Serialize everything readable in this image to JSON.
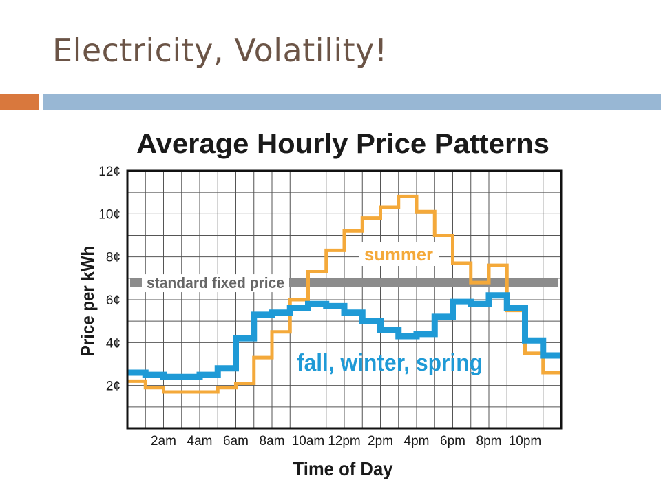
{
  "slide": {
    "title": "Electricity, Volatility!",
    "accent_colors": [
      "#d9783d",
      "#98b7d4"
    ]
  },
  "chart_data": {
    "type": "line",
    "title": "Average Hourly Price Patterns",
    "xlabel": "Time of Day",
    "ylabel": "Price per kWh",
    "x_tick_labels": [
      "2am",
      "4am",
      "6am",
      "8am",
      "10am",
      "12pm",
      "2pm",
      "4pm",
      "6pm",
      "8pm",
      "10pm"
    ],
    "y_tick_labels": [
      "2¢",
      "4¢",
      "6¢",
      "8¢",
      "10¢",
      "12¢"
    ],
    "y_ticks": [
      2,
      4,
      6,
      8,
      10,
      12
    ],
    "ylim": [
      0,
      12
    ],
    "hours": [
      0,
      1,
      2,
      3,
      4,
      5,
      6,
      7,
      8,
      9,
      10,
      11,
      12,
      13,
      14,
      15,
      16,
      17,
      18,
      19,
      20,
      21,
      22,
      23
    ],
    "grid": true,
    "step": true,
    "series": [
      {
        "name": "summer",
        "color": "#f4a93a",
        "values": [
          2.2,
          1.9,
          1.7,
          1.7,
          1.7,
          1.9,
          2.1,
          3.3,
          4.5,
          6.0,
          7.3,
          8.3,
          9.2,
          9.8,
          10.3,
          10.8,
          10.1,
          9.0,
          7.7,
          6.8,
          7.6,
          5.5,
          3.5,
          2.6
        ]
      },
      {
        "name": "fall, winter, spring",
        "color": "#1f9ad6",
        "values": [
          2.6,
          2.5,
          2.4,
          2.4,
          2.5,
          2.8,
          4.2,
          5.3,
          5.4,
          5.6,
          5.8,
          5.7,
          5.4,
          5.0,
          4.6,
          4.3,
          4.4,
          5.2,
          5.9,
          5.8,
          6.2,
          5.6,
          4.1,
          3.4
        ]
      }
    ],
    "reference_line": {
      "label": "standard fixed price",
      "value": 6.8,
      "color": "#8c8c8c"
    }
  }
}
